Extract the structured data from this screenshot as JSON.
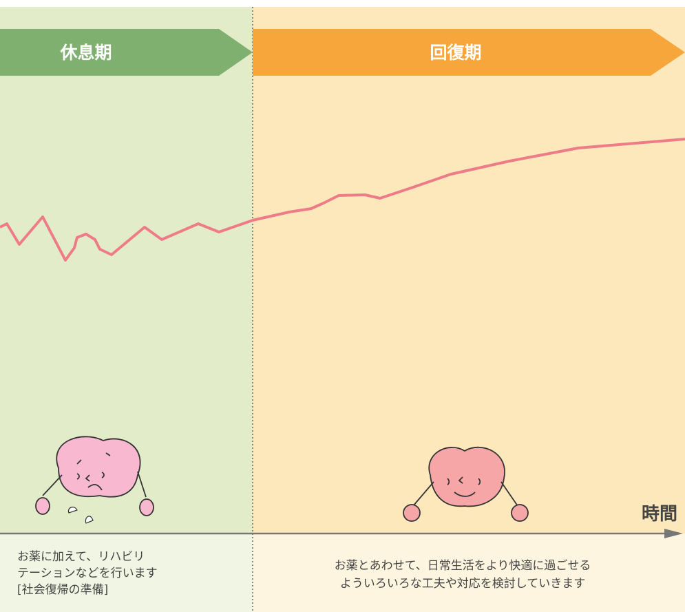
{
  "phases": [
    {
      "label": "休息期",
      "description": [
        "お薬に加えて、リハビリ",
        "テーションなどを行います",
        "[社会復帰の準備]"
      ]
    },
    {
      "label": "回復期",
      "description": [
        "お薬とあわせて、日常生活をより快適に過ごせる",
        "よういろいろな工夫や対応を検討していきます"
      ]
    }
  ],
  "axis_label": "時間"
}
